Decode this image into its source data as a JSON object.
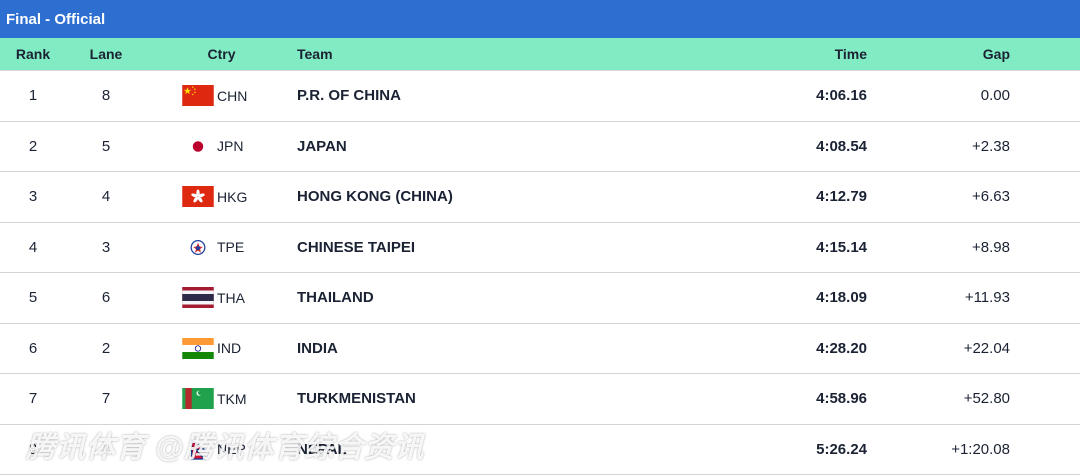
{
  "header": {
    "title": "Final - Official"
  },
  "columns": {
    "rank": "Rank",
    "lane": "Lane",
    "ctry": "Ctry",
    "team": "Team",
    "time": "Time",
    "gap": "Gap"
  },
  "rows": [
    {
      "rank": "1",
      "lane": "8",
      "ctry": "CHN",
      "team": "P.R. OF CHINA",
      "time": "4:06.16",
      "gap": "0.00",
      "flag_icon": "china-flag-icon"
    },
    {
      "rank": "2",
      "lane": "5",
      "ctry": "JPN",
      "team": "JAPAN",
      "time": "4:08.54",
      "gap": "+2.38",
      "flag_icon": "japan-flag-icon"
    },
    {
      "rank": "3",
      "lane": "4",
      "ctry": "HKG",
      "team": "HONG KONG (CHINA)",
      "time": "4:12.79",
      "gap": "+6.63",
      "flag_icon": "hong-kong-flag-icon"
    },
    {
      "rank": "4",
      "lane": "3",
      "ctry": "TPE",
      "team": "CHINESE TAIPEI",
      "time": "4:15.14",
      "gap": "+8.98",
      "flag_icon": "chinese-taipei-flag-icon"
    },
    {
      "rank": "5",
      "lane": "6",
      "ctry": "THA",
      "team": "THAILAND",
      "time": "4:18.09",
      "gap": "+11.93",
      "flag_icon": "thailand-flag-icon"
    },
    {
      "rank": "6",
      "lane": "2",
      "ctry": "IND",
      "team": "INDIA",
      "time": "4:28.20",
      "gap": "+22.04",
      "flag_icon": "india-flag-icon"
    },
    {
      "rank": "7",
      "lane": "7",
      "ctry": "TKM",
      "team": "TURKMENISTAN",
      "time": "4:58.96",
      "gap": "+52.80",
      "flag_icon": "turkmenistan-flag-icon"
    },
    {
      "rank": "8",
      "lane": "1",
      "ctry": "NEP",
      "team": "NEPAL",
      "time": "5:26.24",
      "gap": "+1:20.08",
      "flag_icon": "nepal-flag-icon"
    }
  ],
  "watermark": "腾讯体育 @腾讯体育综合资讯",
  "colors": {
    "title_bar": "#2d6fd1",
    "header_row": "#81ecc3",
    "text": "#1a2233"
  }
}
